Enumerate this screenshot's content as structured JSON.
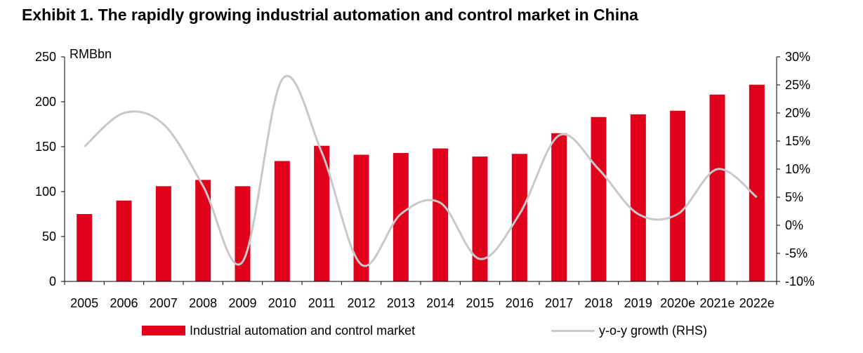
{
  "title": "Exhibit 1. The rapidly growing industrial automation and control market in China",
  "chart_data": {
    "type": "bar",
    "title": "Exhibit 1. The rapidly growing industrial automation and control market in China",
    "ylabel": "RMBbn",
    "categories": [
      "2005",
      "2006",
      "2007",
      "2008",
      "2009",
      "2010",
      "2011",
      "2012",
      "2013",
      "2014",
      "2015",
      "2016",
      "2017",
      "2018",
      "2019",
      "2020e",
      "2021e",
      "2022e"
    ],
    "series": [
      {
        "name": "Industrial automation and control market",
        "type": "bar",
        "axis": "left",
        "color": "#e0001b",
        "values": [
          75,
          90,
          106,
          113,
          106,
          134,
          151,
          141,
          143,
          148,
          139,
          142,
          165,
          183,
          186,
          190,
          208,
          219
        ]
      },
      {
        "name": "y-o-y growth (RHS)",
        "type": "line",
        "axis": "right",
        "color": "#c8c8c8",
        "values": [
          14,
          20,
          18,
          7,
          -6.5,
          26,
          13,
          -7,
          2,
          4,
          -6,
          2,
          16,
          10,
          2,
          2,
          10,
          5
        ]
      }
    ],
    "ylim_left": [
      0,
      250
    ],
    "yticks_left": [
      "0",
      "50",
      "100",
      "150",
      "200",
      "250"
    ],
    "ylim_right": [
      -10,
      30
    ],
    "yticks_right": [
      "-10%",
      "-5%",
      "0%",
      "5%",
      "10%",
      "15%",
      "20%",
      "25%",
      "30%"
    ],
    "legend": [
      "Industrial automation and control market",
      "y-o-y growth (RHS)"
    ],
    "legend_position": "bottom",
    "grid": false
  }
}
